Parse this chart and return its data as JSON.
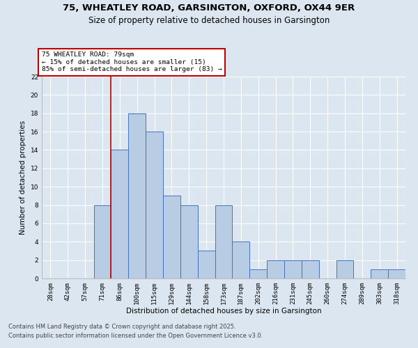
{
  "title1": "75, WHEATLEY ROAD, GARSINGTON, OXFORD, OX44 9ER",
  "title2": "Size of property relative to detached houses in Garsington",
  "xlabel": "Distribution of detached houses by size in Garsington",
  "ylabel": "Number of detached properties",
  "categories": [
    "28sqm",
    "42sqm",
    "57sqm",
    "71sqm",
    "86sqm",
    "100sqm",
    "115sqm",
    "129sqm",
    "144sqm",
    "158sqm",
    "173sqm",
    "187sqm",
    "202sqm",
    "216sqm",
    "231sqm",
    "245sqm",
    "260sqm",
    "274sqm",
    "289sqm",
    "303sqm",
    "318sqm"
  ],
  "values": [
    0,
    0,
    0,
    8,
    14,
    18,
    16,
    9,
    8,
    3,
    8,
    4,
    1,
    2,
    2,
    2,
    0,
    2,
    0,
    1,
    1
  ],
  "bar_color": "#b8cce4",
  "bar_edge_color": "#4472c4",
  "vline_index": 3.5,
  "vline_color": "#c00000",
  "annotation_text": "75 WHEATLEY ROAD: 79sqm\n← 15% of detached houses are smaller (15)\n85% of semi-detached houses are larger (83) →",
  "annotation_box_color": "#ffffff",
  "annotation_box_edge": "#c00000",
  "ylim": [
    0,
    22
  ],
  "yticks": [
    0,
    2,
    4,
    6,
    8,
    10,
    12,
    14,
    16,
    18,
    20,
    22
  ],
  "footnote1": "Contains HM Land Registry data © Crown copyright and database right 2025.",
  "footnote2": "Contains public sector information licensed under the Open Government Licence v3.0.",
  "background_color": "#dce6f1",
  "plot_bg_color": "#dce6f1",
  "grid_color": "#ffffff",
  "title_fontsize": 9.5,
  "subtitle_fontsize": 8.5,
  "axis_label_fontsize": 7.5,
  "tick_fontsize": 6.5,
  "footnote_fontsize": 6.0
}
